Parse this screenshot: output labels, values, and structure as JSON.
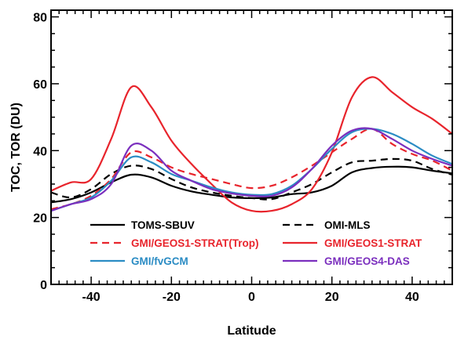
{
  "chart_data": {
    "type": "line",
    "title": "",
    "xlabel": "Latitude",
    "ylabel": "TOC, TOR (DU)",
    "xlim": [
      -50,
      50
    ],
    "ylim": [
      0,
      82
    ],
    "x_ticks": [
      -40,
      -20,
      0,
      20,
      40
    ],
    "y_ticks": [
      0,
      20,
      40,
      60,
      80
    ],
    "x_tick_labels": [
      "-40",
      "-20",
      "0",
      "20",
      "40"
    ],
    "y_tick_labels": [
      "0",
      "20",
      "40",
      "60",
      "80"
    ],
    "grid": false,
    "legend": {
      "placement": "lower-center",
      "columns": 2
    },
    "series": [
      {
        "name": "TOMS-SBUV",
        "color": "#000000",
        "dash": "solid",
        "x": [
          -50,
          -45,
          -40,
          -35,
          -30,
          -25,
          -20,
          -15,
          -10,
          -5,
          0,
          5,
          10,
          15,
          20,
          25,
          30,
          35,
          40,
          45,
          50
        ],
        "y": [
          24.5,
          25.5,
          27.5,
          30.5,
          32.8,
          32.0,
          29.5,
          27.8,
          26.8,
          26.0,
          25.8,
          26.0,
          27.0,
          27.5,
          29.5,
          33.5,
          34.8,
          35.2,
          35.0,
          34.0,
          33.2
        ]
      },
      {
        "name": "OMI-MLS",
        "color": "#000000",
        "dash": "dashed",
        "x": [
          -50,
          -45,
          -40,
          -35,
          -30,
          -25,
          -20,
          -15,
          -10,
          -5,
          0,
          5,
          10,
          15,
          20,
          25,
          30,
          35,
          40,
          45,
          50
        ],
        "y": [
          27.5,
          26.0,
          28.5,
          33.0,
          35.5,
          34.5,
          31.5,
          29.0,
          27.5,
          26.5,
          25.8,
          25.5,
          27.5,
          30.0,
          33.5,
          36.5,
          37.0,
          37.5,
          37.0,
          34.5,
          32.8
        ]
      },
      {
        "name": "GMI/GEOS1-STRAT(Trop)",
        "color": "#e8242c",
        "dash": "dashed",
        "x": [
          -50,
          -45,
          -40,
          -35,
          -30,
          -25,
          -20,
          -15,
          -10,
          -5,
          0,
          5,
          10,
          15,
          20,
          25,
          30,
          35,
          40,
          45,
          50
        ],
        "y": [
          22.5,
          24.0,
          26.5,
          31.5,
          39.5,
          38.0,
          35.0,
          33.0,
          31.5,
          30.0,
          28.8,
          29.5,
          32.0,
          35.5,
          39.5,
          43.5,
          46.5,
          42.0,
          39.0,
          37.0,
          34.0
        ]
      },
      {
        "name": "GMI/GEOS1-STRAT",
        "color": "#e8242c",
        "dash": "solid",
        "x": [
          -50,
          -45,
          -40,
          -35,
          -30,
          -25,
          -20,
          -15,
          -10,
          -5,
          0,
          5,
          10,
          15,
          20,
          25,
          30,
          35,
          40,
          45,
          50
        ],
        "y": [
          28.0,
          30.5,
          31.5,
          43.5,
          59.0,
          53.0,
          43.0,
          36.0,
          30.0,
          24.5,
          22.0,
          22.0,
          24.0,
          28.5,
          39.5,
          56.0,
          62.0,
          57.5,
          53.0,
          49.5,
          45.0
        ]
      },
      {
        "name": "GMI/fvGCM",
        "color": "#2b8cc4",
        "dash": "solid",
        "x": [
          -50,
          -45,
          -40,
          -35,
          -30,
          -25,
          -20,
          -15,
          -10,
          -5,
          0,
          5,
          10,
          15,
          20,
          25,
          30,
          35,
          40,
          45,
          50
        ],
        "y": [
          22.0,
          24.0,
          26.0,
          31.0,
          38.0,
          36.5,
          33.0,
          31.0,
          29.0,
          27.5,
          26.8,
          27.0,
          29.5,
          34.5,
          40.5,
          45.5,
          46.5,
          45.0,
          42.0,
          38.5,
          36.0
        ]
      },
      {
        "name": "GMI/GEOS4-DAS",
        "color": "#7b2fbe",
        "dash": "solid",
        "x": [
          -50,
          -45,
          -40,
          -35,
          -30,
          -25,
          -20,
          -15,
          -10,
          -5,
          0,
          5,
          10,
          15,
          20,
          25,
          30,
          35,
          40,
          45,
          50
        ],
        "y": [
          22.0,
          24.0,
          25.5,
          30.0,
          41.5,
          40.0,
          34.0,
          31.0,
          28.5,
          27.2,
          26.5,
          26.5,
          29.0,
          34.5,
          41.5,
          46.0,
          46.5,
          43.5,
          40.0,
          37.5,
          35.5
        ]
      }
    ]
  }
}
